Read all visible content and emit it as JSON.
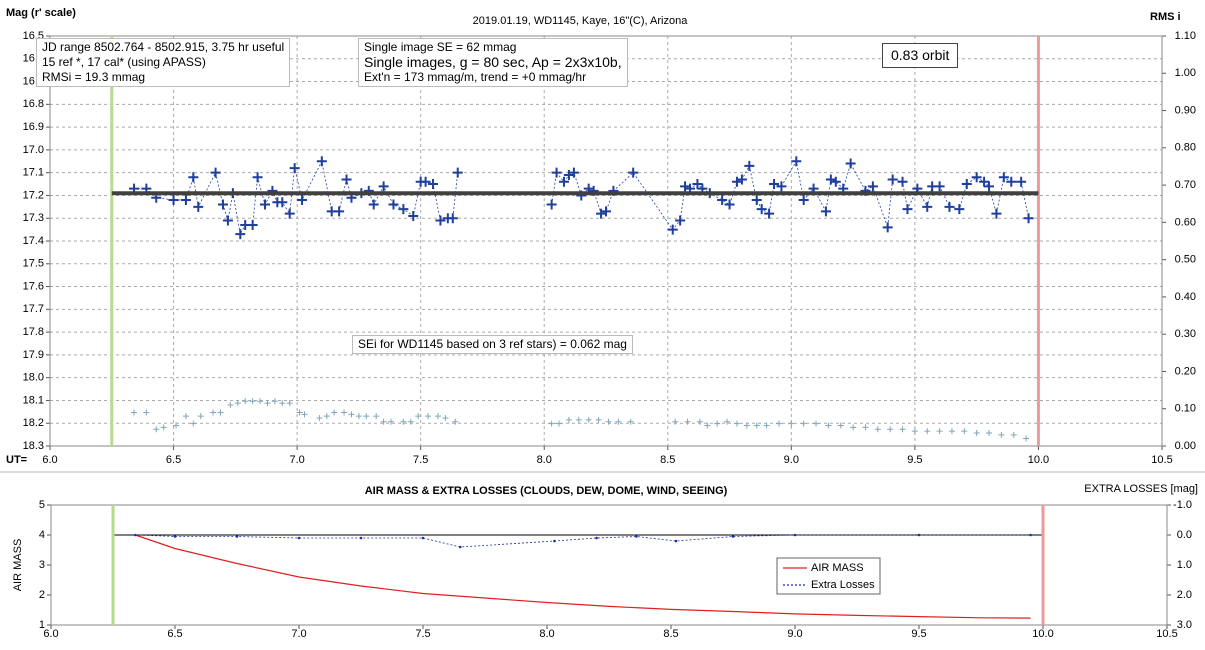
{
  "chart_data": [
    {
      "type": "scatter",
      "title": "2019.01.19, WD1145, Kaye, 16\"(C), Arizona",
      "ylabel": "Mag (r' scale)",
      "y2label": "RMS i",
      "xlabel": "UT=",
      "xlim": [
        6.0,
        10.5
      ],
      "xticks": [
        {
          "value": 6,
          "label": "6.0"
        },
        6.5,
        {
          "value": 7,
          "label": "7.0"
        },
        7.5,
        {
          "value": 8,
          "label": "8.0"
        },
        8.5,
        {
          "value": 9,
          "label": "9.0"
        },
        9.5,
        {
          "value": 10,
          "label": "10.0"
        },
        10.5
      ],
      "ylim": [
        18.3,
        16.5
      ],
      "yticks": [
        16.5,
        16.6,
        16.7,
        16.8,
        16.9,
        {
          "value": 17,
          "label": "17.0"
        },
        17.1,
        17.2,
        17.3,
        17.4,
        17.5,
        17.6,
        17.7,
        17.8,
        17.9,
        {
          "value": 18,
          "label": "18.0"
        },
        18.1,
        18.2,
        18.3
      ],
      "y2lim": [
        0,
        1.1
      ],
      "y2ticks": [
        {
          "value": 0,
          "label": "0.00"
        },
        {
          "value": 0.1,
          "label": "0.10"
        },
        {
          "value": 0.2,
          "label": "0.20"
        },
        {
          "value": 0.3,
          "label": "0.30"
        },
        {
          "value": 0.4,
          "label": "0.40"
        },
        {
          "value": 0.5,
          "label": "0.50"
        },
        {
          "value": 0.6,
          "label": "0.60"
        },
        {
          "value": 0.7,
          "label": "0.70"
        },
        {
          "value": 0.8,
          "label": "0.80"
        },
        {
          "value": 0.9,
          "label": "0.90"
        },
        {
          "value": 1.0,
          "label": "1.00"
        },
        {
          "value": 1.1,
          "label": "1.10"
        }
      ],
      "grid": true,
      "vlines": [
        {
          "x": 6.25,
          "color": "#b5dc8c"
        },
        {
          "x": 10.0,
          "color": "#ef9a9a"
        }
      ],
      "annotations": [
        {
          "lines": [
            "JD range 8502.764 - 8502.915, 3.75 hr useful",
            "15 ref *, 17 cal* (using APASS)",
            "RMSi = 19.3 mmag"
          ]
        },
        {
          "lines": [
            "Single image SE = 62 mmag",
            "Single images, g = 80 sec, Ap = 2x3x10b,",
            "Ext'n = 173 mmag/m, trend = +0 mmag/hr"
          ]
        },
        {
          "lines": [
            "0.83 orbit"
          ]
        },
        {
          "lines": [
            "SEi for WD1145 based on 3 ref stars) = 0.062 mag"
          ]
        }
      ],
      "series": [
        {
          "color": "#1f3f9f",
          "marker": "plus",
          "line": "dotted",
          "x": [
            6.34,
            6.39,
            6.43,
            6.5,
            6.55,
            6.58,
            6.6,
            6.67,
            6.7,
            6.72,
            6.74,
            6.77,
            6.79,
            6.82,
            6.84,
            6.87,
            6.9,
            6.92,
            6.94,
            6.97,
            6.99,
            7.02,
            7.1,
            7.14,
            7.17,
            7.2,
            7.22,
            7.26,
            7.29,
            7.31,
            7.35,
            7.39,
            7.43,
            7.47,
            7.5,
            7.52,
            7.55,
            7.58,
            7.61,
            7.63,
            7.65,
            null,
            8.03,
            8.05,
            8.08,
            8.1,
            8.12,
            8.15,
            8.18,
            8.2,
            8.23,
            8.25,
            8.28,
            8.36,
            8.52,
            8.55,
            8.57,
            8.59,
            8.62,
            8.64,
            8.67,
            8.72,
            8.75,
            8.78,
            8.8,
            8.83,
            8.86,
            8.88,
            8.91,
            8.93,
            8.96,
            9.02,
            9.05,
            9.09,
            9.14,
            9.16,
            9.18,
            9.21,
            9.24,
            9.3,
            9.33,
            9.39,
            9.41,
            9.45,
            9.47,
            9.51,
            9.55,
            9.57,
            9.6,
            9.64,
            9.68,
            9.71,
            9.75,
            9.78,
            9.8,
            9.83,
            9.86,
            9.89,
            9.93,
            9.96
          ],
          "values": [
            17.17,
            17.17,
            17.21,
            17.22,
            17.22,
            17.12,
            17.25,
            17.1,
            17.24,
            17.31,
            17.19,
            17.37,
            17.33,
            17.33,
            17.12,
            17.24,
            17.18,
            17.23,
            17.23,
            17.28,
            17.08,
            17.22,
            17.05,
            17.27,
            17.27,
            17.13,
            17.21,
            17.19,
            17.18,
            17.24,
            17.16,
            17.24,
            17.26,
            17.29,
            17.14,
            17.14,
            17.15,
            17.31,
            17.3,
            17.3,
            17.1,
            null,
            17.24,
            17.1,
            17.14,
            17.11,
            17.1,
            17.2,
            17.17,
            17.18,
            17.28,
            17.27,
            17.18,
            17.1,
            17.35,
            17.31,
            17.16,
            17.17,
            17.15,
            17.17,
            17.19,
            17.22,
            17.24,
            17.14,
            17.13,
            17.07,
            17.22,
            17.26,
            17.28,
            17.15,
            17.16,
            17.05,
            17.22,
            17.17,
            17.27,
            17.13,
            17.14,
            17.17,
            17.06,
            17.18,
            17.16,
            17.34,
            17.13,
            17.14,
            17.26,
            17.17,
            17.25,
            17.16,
            17.16,
            17.25,
            17.26,
            17.15,
            17.12,
            17.14,
            17.16,
            17.28,
            17.12,
            17.14,
            17.14,
            17.3
          ]
        },
        {
          "color": "#404040",
          "marker": "none",
          "line": "thick",
          "x": [
            6.25,
            10.0
          ],
          "values": [
            17.19,
            17.19
          ]
        },
        {
          "color": "#7fa6b8",
          "marker": "smallplus",
          "line": "none",
          "axis": "y2",
          "x": [
            6.34,
            6.39,
            6.43,
            6.46,
            6.51,
            6.55,
            6.58,
            6.61,
            6.66,
            6.69,
            6.73,
            6.76,
            6.79,
            6.82,
            6.85,
            6.88,
            6.91,
            6.94,
            6.97,
            7.01,
            7.03,
            7.09,
            7.12,
            7.15,
            7.19,
            7.22,
            7.25,
            7.28,
            7.32,
            7.35,
            7.38,
            7.43,
            7.46,
            7.49,
            7.53,
            7.57,
            7.6,
            7.64,
            8.03,
            8.06,
            8.1,
            8.14,
            8.18,
            8.22,
            8.26,
            8.3,
            8.35,
            8.53,
            8.58,
            8.63,
            8.66,
            8.7,
            8.74,
            8.78,
            8.82,
            8.86,
            8.9,
            8.95,
            9.0,
            9.05,
            9.1,
            9.15,
            9.2,
            9.25,
            9.3,
            9.35,
            9.4,
            9.45,
            9.5,
            9.55,
            9.6,
            9.65,
            9.7,
            9.75,
            9.8,
            9.85,
            9.9,
            9.95
          ],
          "values": [
            0.09,
            0.09,
            0.045,
            0.05,
            0.055,
            0.08,
            0.06,
            0.08,
            0.09,
            0.09,
            0.11,
            0.115,
            0.12,
            0.12,
            0.12,
            0.115,
            0.12,
            0.115,
            0.115,
            0.09,
            0.085,
            0.075,
            0.08,
            0.09,
            0.09,
            0.085,
            0.08,
            0.08,
            0.08,
            0.065,
            0.065,
            0.065,
            0.065,
            0.08,
            0.08,
            0.08,
            0.075,
            0.065,
            0.06,
            0.06,
            0.07,
            0.07,
            0.07,
            0.07,
            0.065,
            0.065,
            0.065,
            0.065,
            0.065,
            0.065,
            0.055,
            0.06,
            0.065,
            0.06,
            0.055,
            0.055,
            0.055,
            0.06,
            0.06,
            0.06,
            0.06,
            0.055,
            0.055,
            0.05,
            0.05,
            0.045,
            0.045,
            0.045,
            0.04,
            0.04,
            0.04,
            0.04,
            0.04,
            0.035,
            0.035,
            0.03,
            0.03,
            0.02
          ]
        }
      ]
    },
    {
      "type": "line",
      "title": "AIR MASS & EXTRA LOSSES (CLOUDS, DEW, DOME, WIND, SEEING)",
      "ylabel": "AIR MASS",
      "y2label": "EXTRA LOSSES [mag]",
      "xlim": [
        6.0,
        10.5
      ],
      "xticks": [
        {
          "value": 6,
          "label": "6.0"
        },
        6.5,
        {
          "value": 7,
          "label": "7.0"
        },
        7.5,
        {
          "value": 8,
          "label": "8.0"
        },
        8.5,
        {
          "value": 9,
          "label": "9.0"
        },
        9.5,
        {
          "value": 10,
          "label": "10.0"
        },
        10.5
      ],
      "ylim": [
        1,
        5
      ],
      "yticks": [
        1,
        2,
        3,
        4,
        5
      ],
      "y2lim": [
        3,
        -1
      ],
      "y2ticks": [
        {
          "value": -1,
          "label": "-1.0"
        },
        {
          "value": 0,
          "label": "0.0"
        },
        {
          "value": 1,
          "label": "1.0"
        },
        {
          "value": 2,
          "label": "2.0"
        },
        {
          "value": 3,
          "label": "3.0"
        }
      ],
      "grid": false,
      "legend": "lower right",
      "vlines": [
        {
          "x": 6.25,
          "color": "#b5dc8c"
        },
        {
          "x": 10.0,
          "color": "#ef9a9a"
        }
      ],
      "series": [
        {
          "name": "AIR MASS",
          "color": "#e02020",
          "marker": "none",
          "line": "solid",
          "x": [
            6.34,
            6.5,
            6.75,
            7.0,
            7.25,
            7.5,
            7.75,
            8.0,
            8.25,
            8.5,
            8.75,
            9.0,
            9.25,
            9.5,
            9.75,
            9.95
          ],
          "values": [
            4.0,
            3.55,
            3.05,
            2.6,
            2.3,
            2.05,
            1.9,
            1.75,
            1.62,
            1.52,
            1.45,
            1.37,
            1.32,
            1.28,
            1.24,
            1.23
          ]
        },
        {
          "name": "Extra Losses",
          "color": "#1f2f9f",
          "marker": "dot",
          "line": "dotted",
          "axis": "y2",
          "x": [
            6.34,
            6.5,
            6.75,
            7.0,
            7.25,
            7.5,
            7.65,
            8.03,
            8.2,
            8.36,
            8.52,
            8.75,
            9.0,
            9.5,
            9.95
          ],
          "values": [
            0.0,
            0.05,
            0.05,
            0.1,
            0.1,
            0.1,
            0.4,
            0.2,
            0.1,
            0.05,
            0.2,
            0.05,
            0.0,
            0.0,
            0.0
          ]
        }
      ]
    }
  ]
}
